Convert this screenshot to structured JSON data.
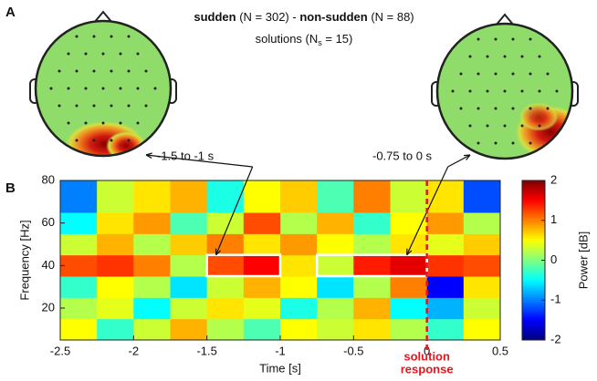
{
  "chart_data": {
    "type": "heatmap",
    "panel_labels": [
      "A",
      "B"
    ],
    "title_parts": [
      {
        "text": "sudden",
        "bold": true
      },
      {
        "text": " (N = 302) - ",
        "bold": false
      },
      {
        "text": "non-sudden",
        "bold": true
      },
      {
        "text": " (N = 88)",
        "bold": false
      }
    ],
    "subtitle_parts": [
      "solutions (N",
      "s",
      " = 15)"
    ],
    "x_label": "Time [s]",
    "y_label": "Frequency [Hz]",
    "colorbar_label": "Power [dB]",
    "xlim": [
      -2.5,
      0.5
    ],
    "xticks": [
      -2.5,
      -2,
      -1.5,
      -1,
      -0.5,
      0,
      0.5
    ],
    "ylim": [
      5,
      80
    ],
    "yticks": [
      20,
      40,
      60,
      80
    ],
    "clim": [
      -2,
      2
    ],
    "cticks": [
      -2,
      -1,
      0,
      1,
      2
    ],
    "colormap": "jet",
    "x": [
      -2.375,
      -2.125,
      -1.875,
      -1.625,
      -1.375,
      -1.125,
      -0.875,
      -0.625,
      -0.375,
      -0.125,
      0.125,
      0.375
    ],
    "y": [
      10,
      20,
      30,
      40,
      50,
      60,
      70
    ],
    "z": [
      [
        0.5,
        -0.3,
        0.3,
        0.8,
        0.2,
        -0.2,
        0.5,
        0.3,
        0.6,
        0.2,
        -0.3,
        0.5
      ],
      [
        0.2,
        0.4,
        -0.5,
        0.3,
        0.6,
        0.4,
        -0.4,
        0.2,
        0.8,
        -0.5,
        -0.8,
        0.3
      ],
      [
        -0.3,
        0.5,
        0.2,
        -0.6,
        0.3,
        0.8,
        0.5,
        -0.6,
        0.2,
        1.0,
        -1.5,
        0.6
      ],
      [
        1.2,
        1.3,
        1.0,
        0.2,
        1.2,
        1.5,
        0.6,
        0.3,
        1.4,
        1.6,
        1.3,
        1.2
      ],
      [
        0.3,
        0.8,
        0.2,
        0.7,
        1.0,
        0.6,
        0.9,
        0.5,
        0.2,
        0.6,
        0.4,
        0.7
      ],
      [
        -0.5,
        0.6,
        0.9,
        -0.2,
        0.3,
        1.2,
        0.2,
        0.8,
        -0.3,
        0.5,
        0.9,
        0.2
      ],
      [
        -1.0,
        0.3,
        0.6,
        0.8,
        -0.4,
        0.5,
        0.7,
        -0.2,
        1.0,
        0.3,
        0.6,
        -1.2
      ]
    ],
    "windows": [
      {
        "label": "-1.5 to -1 s",
        "xlim": [
          -1.5,
          -1
        ],
        "ylim": [
          35,
          45
        ]
      },
      {
        "label": "-0.75 to 0 s",
        "xlim": [
          -0.75,
          0
        ],
        "ylim": [
          35,
          45
        ]
      }
    ],
    "window_color": "#ffffff",
    "marker": {
      "x": 0,
      "color": "#e8141c",
      "label_lines": [
        "solution",
        "response"
      ]
    }
  }
}
